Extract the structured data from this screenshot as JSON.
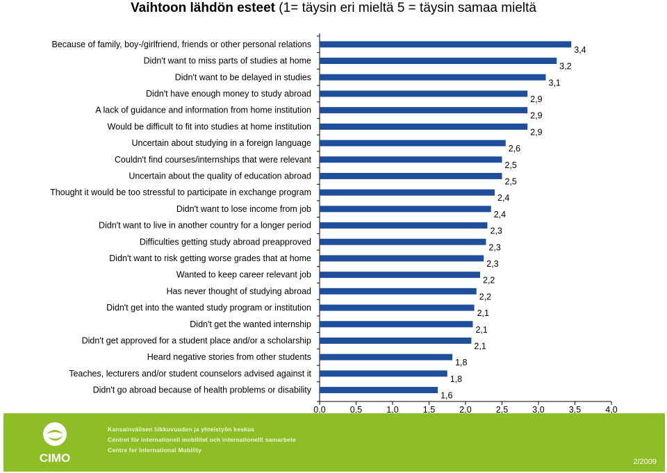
{
  "title": {
    "main": "Vaihtoon lähdön esteet",
    "sub": " (1= täysin eri mieltä  5 = täysin samaa mieltä"
  },
  "chart_data": {
    "type": "bar",
    "orientation": "horizontal",
    "categories": [
      "Because of family, boy-/girlfriend, friends or other personal relations",
      "Didn't want to miss parts of studies at home",
      "Didn't want to be delayed in studies",
      "Didn't have enough money to study abroad",
      "A lack of guidance and information from home institution",
      "Would be difficult to fit into studies at home institution",
      "Uncertain about studying in a foreign language",
      "Couldn't find courses/internships that were relevant",
      "Uncertain about the quality of education abroad",
      "Thought it would be too stressful to participate in exchange program",
      "Didn't want to lose income from job",
      "Didn't want to live in another country for a longer period",
      "Difficulties getting study abroad preapproved",
      "Didn't want to risk getting worse grades that at home",
      "Wanted to keep career relevant job",
      "Has never thought of studying abroad",
      "Didn't get into the wanted study program or institution",
      "Didn't get the wanted internship",
      "Didn't get approved for a student place and/or a scholarship",
      "Heard negative stories from other students",
      "Teaches, lecturers and/or student counselors advised against it",
      "Didn't go abroad because of health problems or disability"
    ],
    "values": [
      3.45,
      3.25,
      3.1,
      2.85,
      2.85,
      2.85,
      2.55,
      2.5,
      2.5,
      2.4,
      2.35,
      2.3,
      2.28,
      2.25,
      2.2,
      2.15,
      2.12,
      2.1,
      2.08,
      1.82,
      1.75,
      1.62
    ],
    "value_labels": [
      "3,4",
      "3,2",
      "3,1",
      "2,9",
      "2,9",
      "2,9",
      "2,6",
      "2,5",
      "2,5",
      "2,4",
      "2,4",
      "2,3",
      "2,3",
      "2,3",
      "2,2",
      "2,2",
      "2,1",
      "2,1",
      "2,1",
      "1,8",
      "1,8",
      "1,6"
    ],
    "xlim": [
      0,
      4
    ],
    "x_ticks": [
      "0,0",
      "0,5",
      "1,0",
      "1,5",
      "2,0",
      "2,5",
      "3,0",
      "3,5",
      "4,0"
    ],
    "bar_color": "#1f4e9c",
    "grid": false
  },
  "footer": {
    "logo_text": "CIMO",
    "lines": [
      "Kansainvälisen liikkuvuuden ja yhteistyön keskus",
      "Centret för internationell mobilitet och internationellt samarbete",
      "Centre for International Mobility"
    ],
    "date": "2/2009",
    "color": "#8dbe25"
  }
}
